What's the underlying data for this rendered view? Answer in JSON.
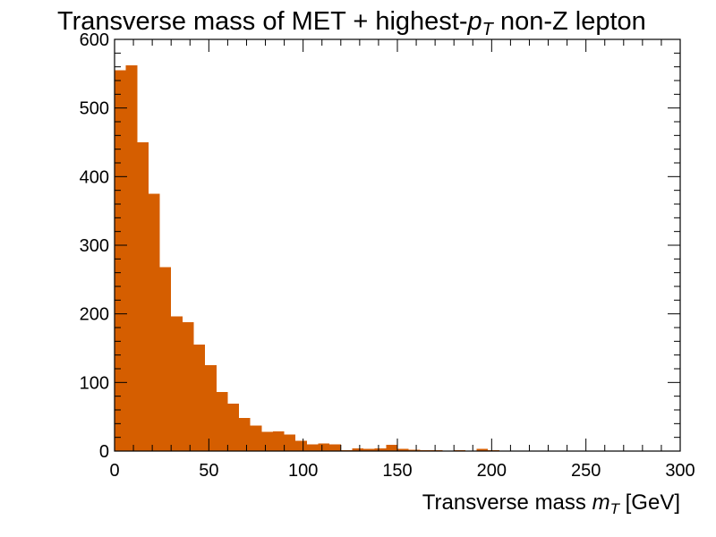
{
  "chart_data": {
    "type": "histogram",
    "title": {
      "prefix": "Transverse mass of MET + highest-",
      "math_base": "p",
      "math_sub": "T",
      "suffix": " non-Z lepton"
    },
    "xlabel": {
      "prefix": "Transverse mass ",
      "math_base": "m",
      "math_sub": "T",
      "suffix": " [GeV]"
    },
    "ylabel": "",
    "xlim": [
      0,
      300
    ],
    "ylim": [
      0,
      600
    ],
    "x_ticks": [
      "0",
      "50",
      "100",
      "150",
      "200",
      "250",
      "300"
    ],
    "y_ticks": [
      "0",
      "100",
      "200",
      "300",
      "400",
      "500",
      "600"
    ],
    "grid": false,
    "legend": "none",
    "bar_color": "#d55e00",
    "bins": {
      "edges_start": 0,
      "bin_width": 6,
      "counts": [
        555,
        562,
        450,
        375,
        268,
        196,
        188,
        155,
        125,
        86,
        69,
        48,
        37,
        28,
        29,
        24,
        15,
        10,
        11,
        10,
        1,
        4,
        3,
        4,
        9,
        3,
        2,
        1,
        1,
        0,
        1,
        0,
        3,
        1,
        0,
        0,
        0,
        0,
        0,
        0,
        0,
        0,
        0,
        0,
        0,
        0,
        0,
        0,
        0,
        0
      ]
    }
  }
}
